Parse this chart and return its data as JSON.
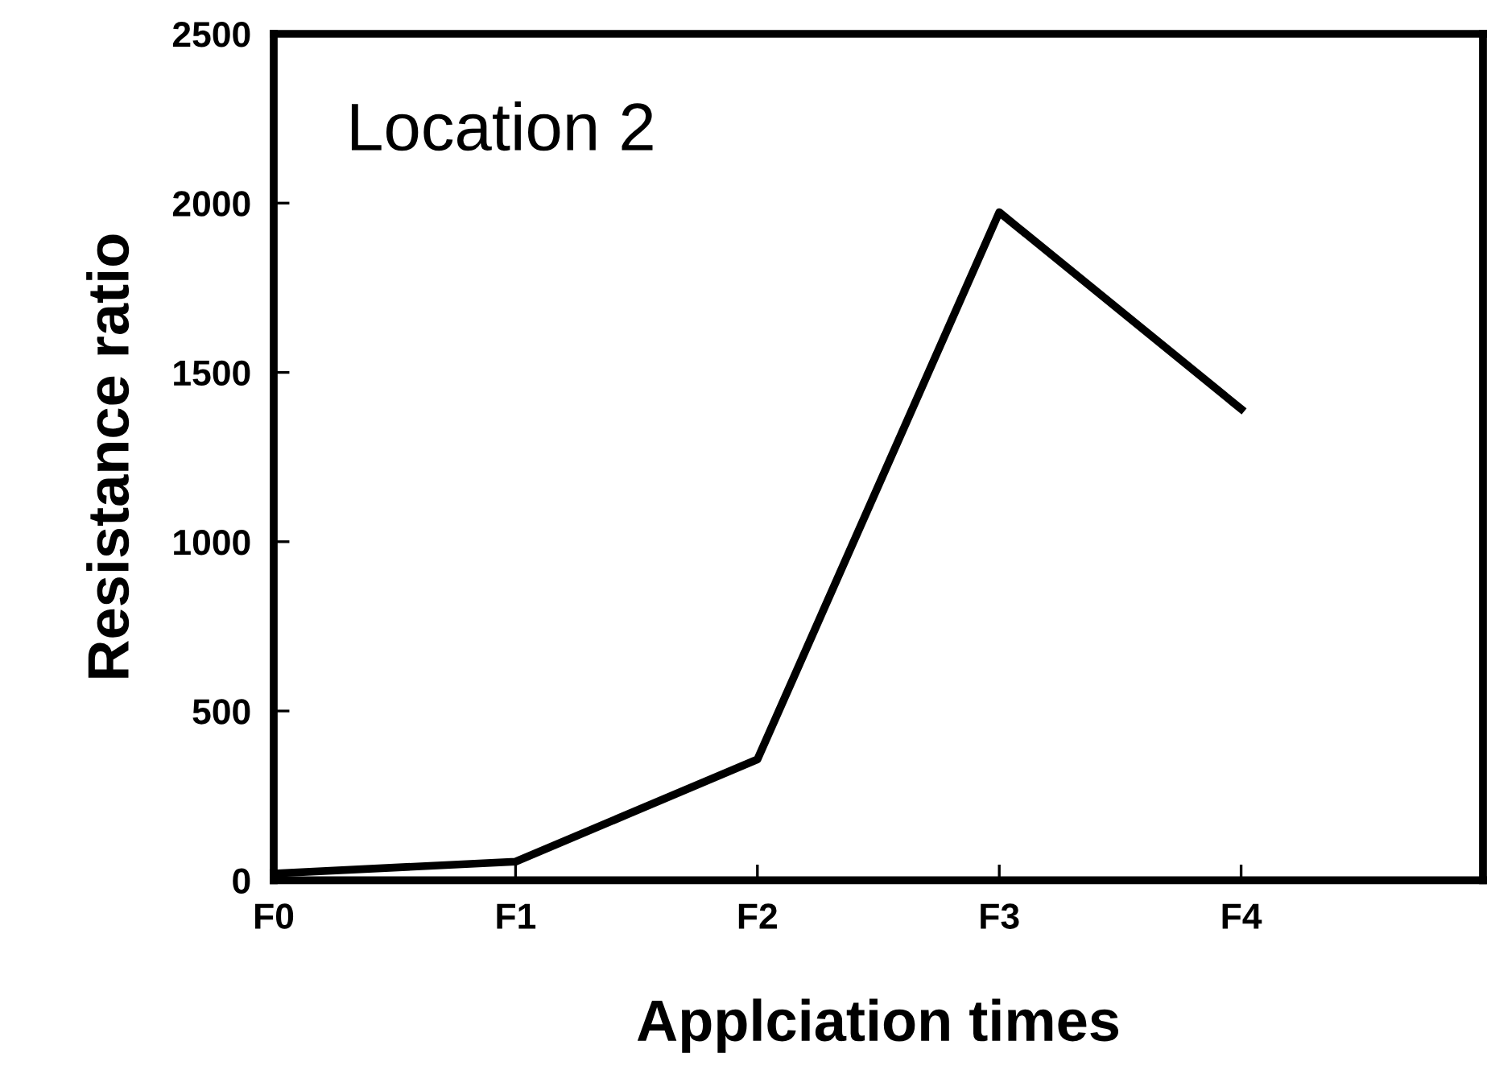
{
  "chart_data": {
    "type": "line",
    "xlabel": "Applciation times",
    "ylabel": "Resistance ratio",
    "annotations": [
      "Location 2"
    ],
    "categories": [
      "F0",
      "F1",
      "F2",
      "F3",
      "F4",
      null
    ],
    "series": [
      {
        "color": "#000000",
        "values": [
          20,
          55,
          357,
          1973,
          1392,
          null
        ]
      }
    ],
    "ylim": [
      0,
      2500
    ],
    "yticks": [
      0,
      500,
      1000,
      1500,
      2000,
      2500
    ],
    "grid": false,
    "marker": "none",
    "line_style": "solid"
  }
}
